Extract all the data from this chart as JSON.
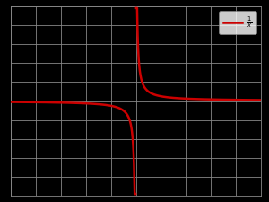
{
  "background_color": "#000000",
  "grid_color": "#888888",
  "curve_color": "#cc0000",
  "curve_linewidth": 1.8,
  "xlim": [
    -10,
    10
  ],
  "ylim": [
    -10,
    10
  ],
  "xticks": [
    -10,
    -8,
    -6,
    -4,
    -2,
    0,
    2,
    4,
    6,
    8,
    10
  ],
  "yticks": [
    -10,
    -8,
    -6,
    -4,
    -2,
    0,
    2,
    4,
    6,
    8,
    10
  ],
  "clip_val": 9.8,
  "x_near_zero_gap": 0.03,
  "legend_facecolor": "#ffffff",
  "legend_edgecolor": "#888888",
  "legend_fontsize": 7
}
